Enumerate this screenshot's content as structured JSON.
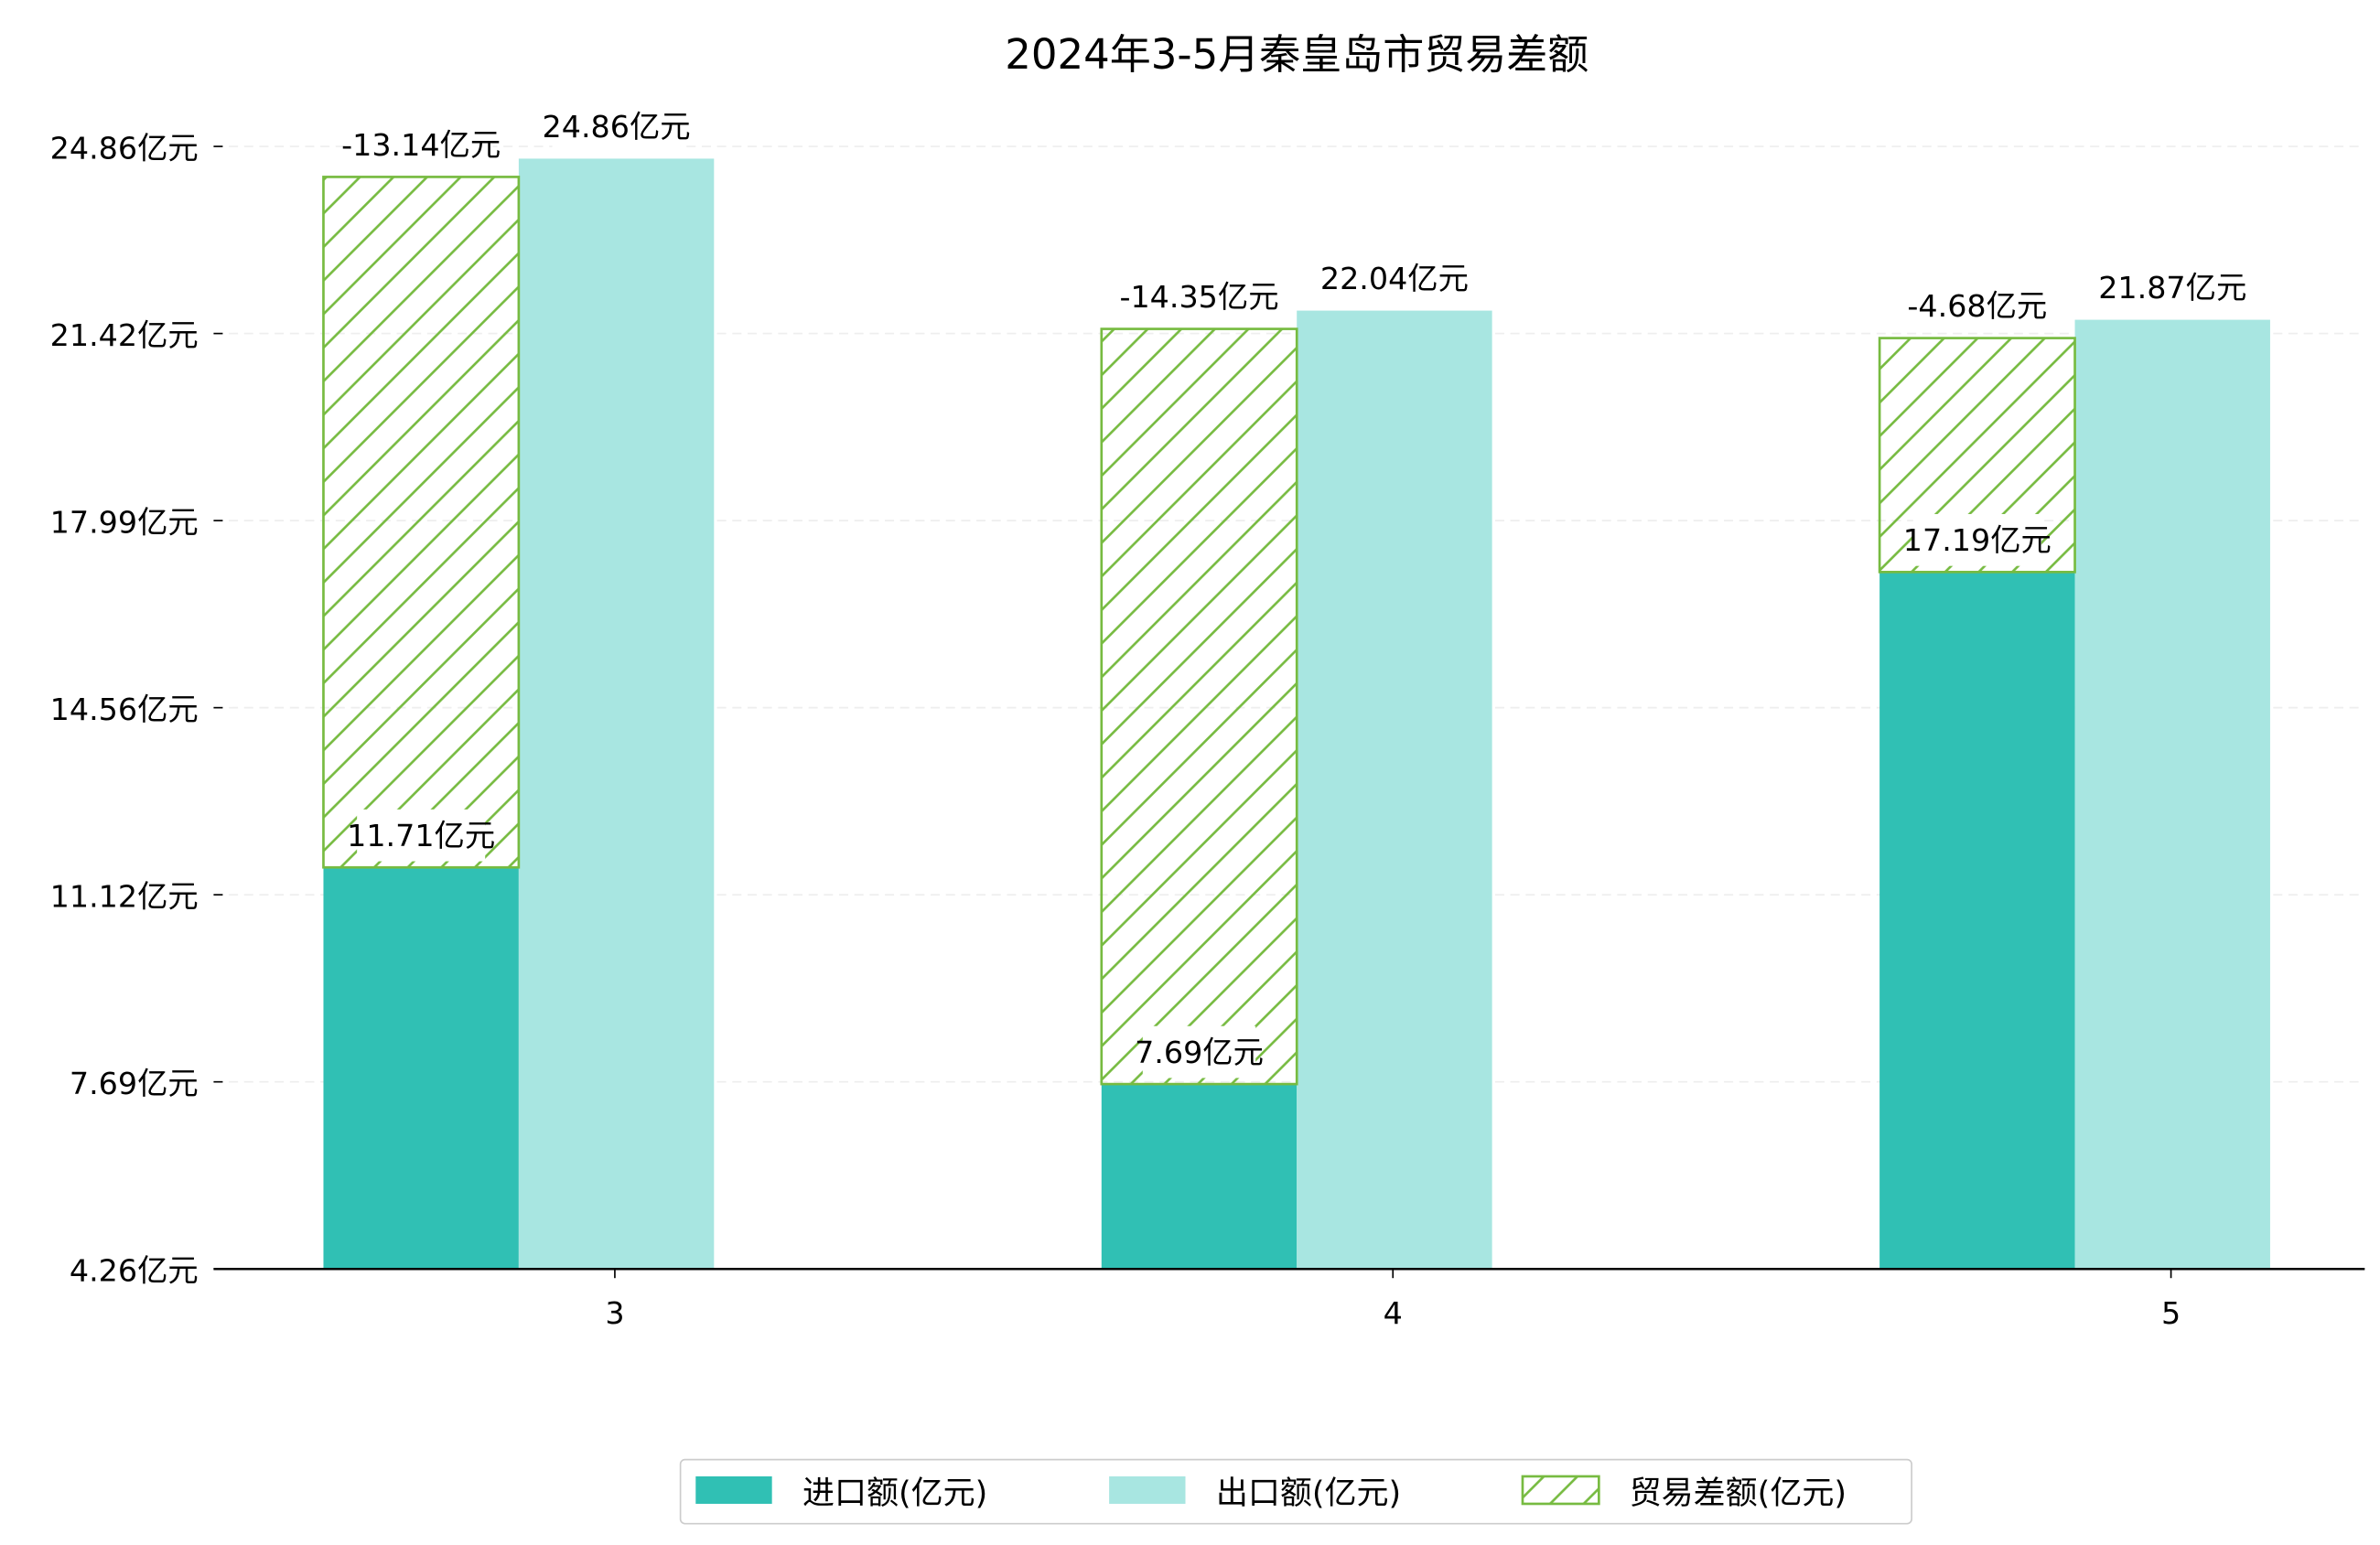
{
  "chart_data": {
    "type": "bar",
    "title": "2024年3-5月秦皇岛市贸易差额",
    "xlabel": "",
    "ylabel": "",
    "categories": [
      "3",
      "4",
      "5"
    ],
    "unit_suffix": "亿元",
    "y_ticks": [
      "4.26亿元",
      "7.69亿元",
      "11.12亿元",
      "14.56亿元",
      "17.99亿元",
      "21.42亿元",
      "24.86亿元"
    ],
    "ylim": [
      4.26,
      24.86
    ],
    "grid": true,
    "legend_position": "bottom-center",
    "series": [
      {
        "name": "进口额(亿元)",
        "values": [
          11.71,
          7.69,
          17.19
        ],
        "labels": [
          "11.71亿元",
          "7.69亿元",
          "17.19亿元"
        ],
        "color": "#30c0b4"
      },
      {
        "name": "出口额(亿元)",
        "values": [
          24.86,
          22.04,
          21.87
        ],
        "labels": [
          "24.86亿元",
          "22.04亿元",
          "21.87亿元"
        ],
        "color": "#a8e6e1"
      },
      {
        "name": "贸易差额(亿元)",
        "values": [
          -13.14,
          -14.35,
          -4.68
        ],
        "labels": [
          "-13.14亿元",
          "-14.35亿元",
          "-4.68亿元"
        ],
        "color": "#77bb41",
        "style": "hatched"
      }
    ]
  }
}
